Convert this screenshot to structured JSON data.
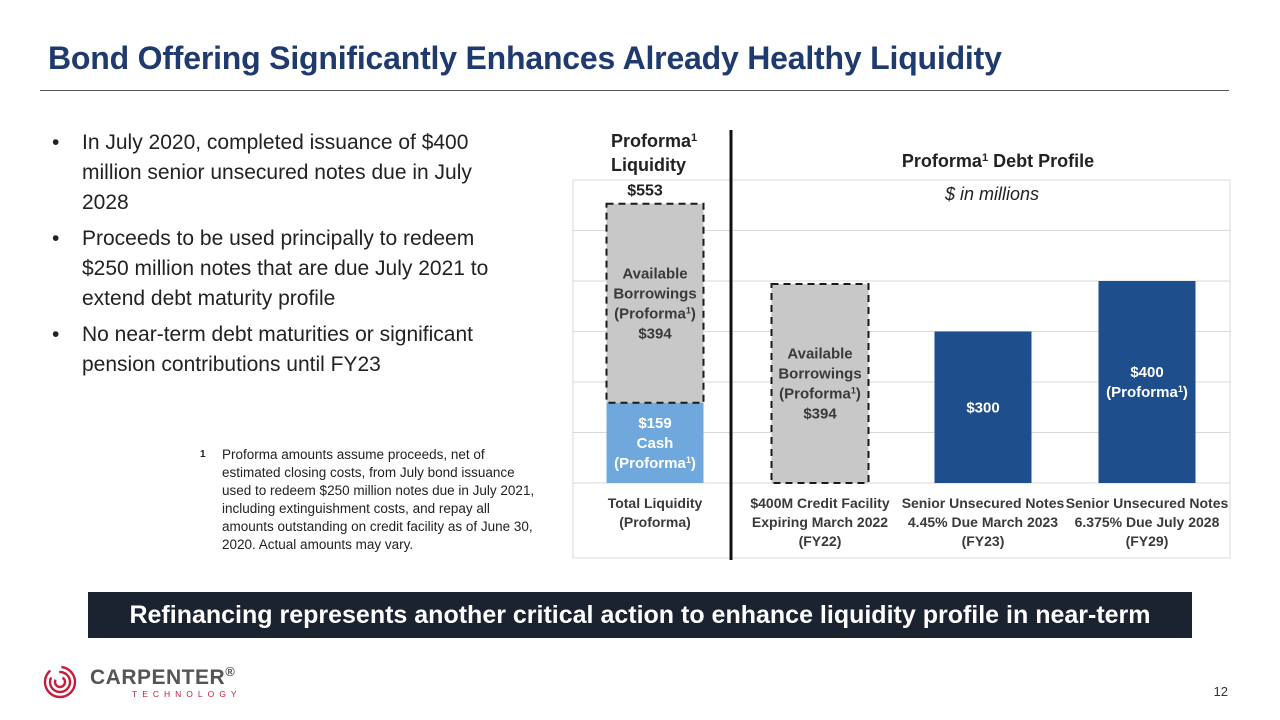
{
  "slide": {
    "title": "Bond Offering Significantly Enhances Already Healthy Liquidity",
    "page_number": "12"
  },
  "bullets": [
    "In July 2020, completed issuance of $400 million senior unsecured notes due in July 2028",
    "Proceeds to be used principally to redeem $250 million notes that are due July 2021 to extend debt maturity profile",
    "No near-term debt maturities or significant pension contributions until FY23"
  ],
  "footnote": {
    "marker": "1",
    "text": "Proforma amounts assume proceeds, net of estimated closing costs, from July bond issuance used to redeem $250 million notes due in July 2021, including extinguishment costs, and repay all amounts outstanding on credit facility as of June 30, 2020. Actual amounts may vary."
  },
  "callout": "Refinancing represents another critical action to enhance liquidity profile in near-term",
  "logo": {
    "name": "CARPENTER",
    "sub": "TECHNOLOGY",
    "mark": "®"
  },
  "chart_data": {
    "type": "bar",
    "liquidity_heading": [
      "Proforma",
      "Liquidity"
    ],
    "debt_heading": "Proforma Debt Profile",
    "superscript": "1",
    "subtitle": "$ in millions",
    "ylim": [
      0,
      600
    ],
    "grid": true,
    "categories": [
      [
        "Total Liquidity",
        "(Proforma)"
      ],
      [
        "$400M Credit Facility",
        "Expiring March 2022",
        "(FY22)"
      ],
      [
        "Senior Unsecured Notes",
        "4.45% Due March 2023",
        "(FY23)"
      ],
      [
        "Senior Unsecured Notes",
        "6.375% Due July 2028",
        "(FY29)"
      ]
    ],
    "total_label": "$553",
    "bars": [
      {
        "category": 0,
        "base": 0,
        "value": 159,
        "style": "cash",
        "color": "#6fa8dc",
        "label": [
          "$159",
          "Cash",
          "(Proforma^)"
        ]
      },
      {
        "category": 0,
        "base": 159,
        "value": 394,
        "style": "available",
        "color": "#c8c8c8",
        "label": [
          "Available",
          "Borrowings",
          "(Proforma^)",
          "$394"
        ]
      },
      {
        "category": 1,
        "base": 0,
        "value": 394,
        "style": "available",
        "color": "#c8c8c8",
        "label": [
          "Available",
          "Borrowings",
          "(Proforma^)",
          "$394"
        ]
      },
      {
        "category": 2,
        "base": 0,
        "value": 300,
        "style": "debt",
        "color": "#1f4e8c",
        "label": [
          "$300"
        ]
      },
      {
        "category": 3,
        "base": 0,
        "value": 400,
        "style": "debt",
        "color": "#1f4e8c",
        "label": [
          "$400",
          "(Proforma^)"
        ]
      }
    ]
  }
}
